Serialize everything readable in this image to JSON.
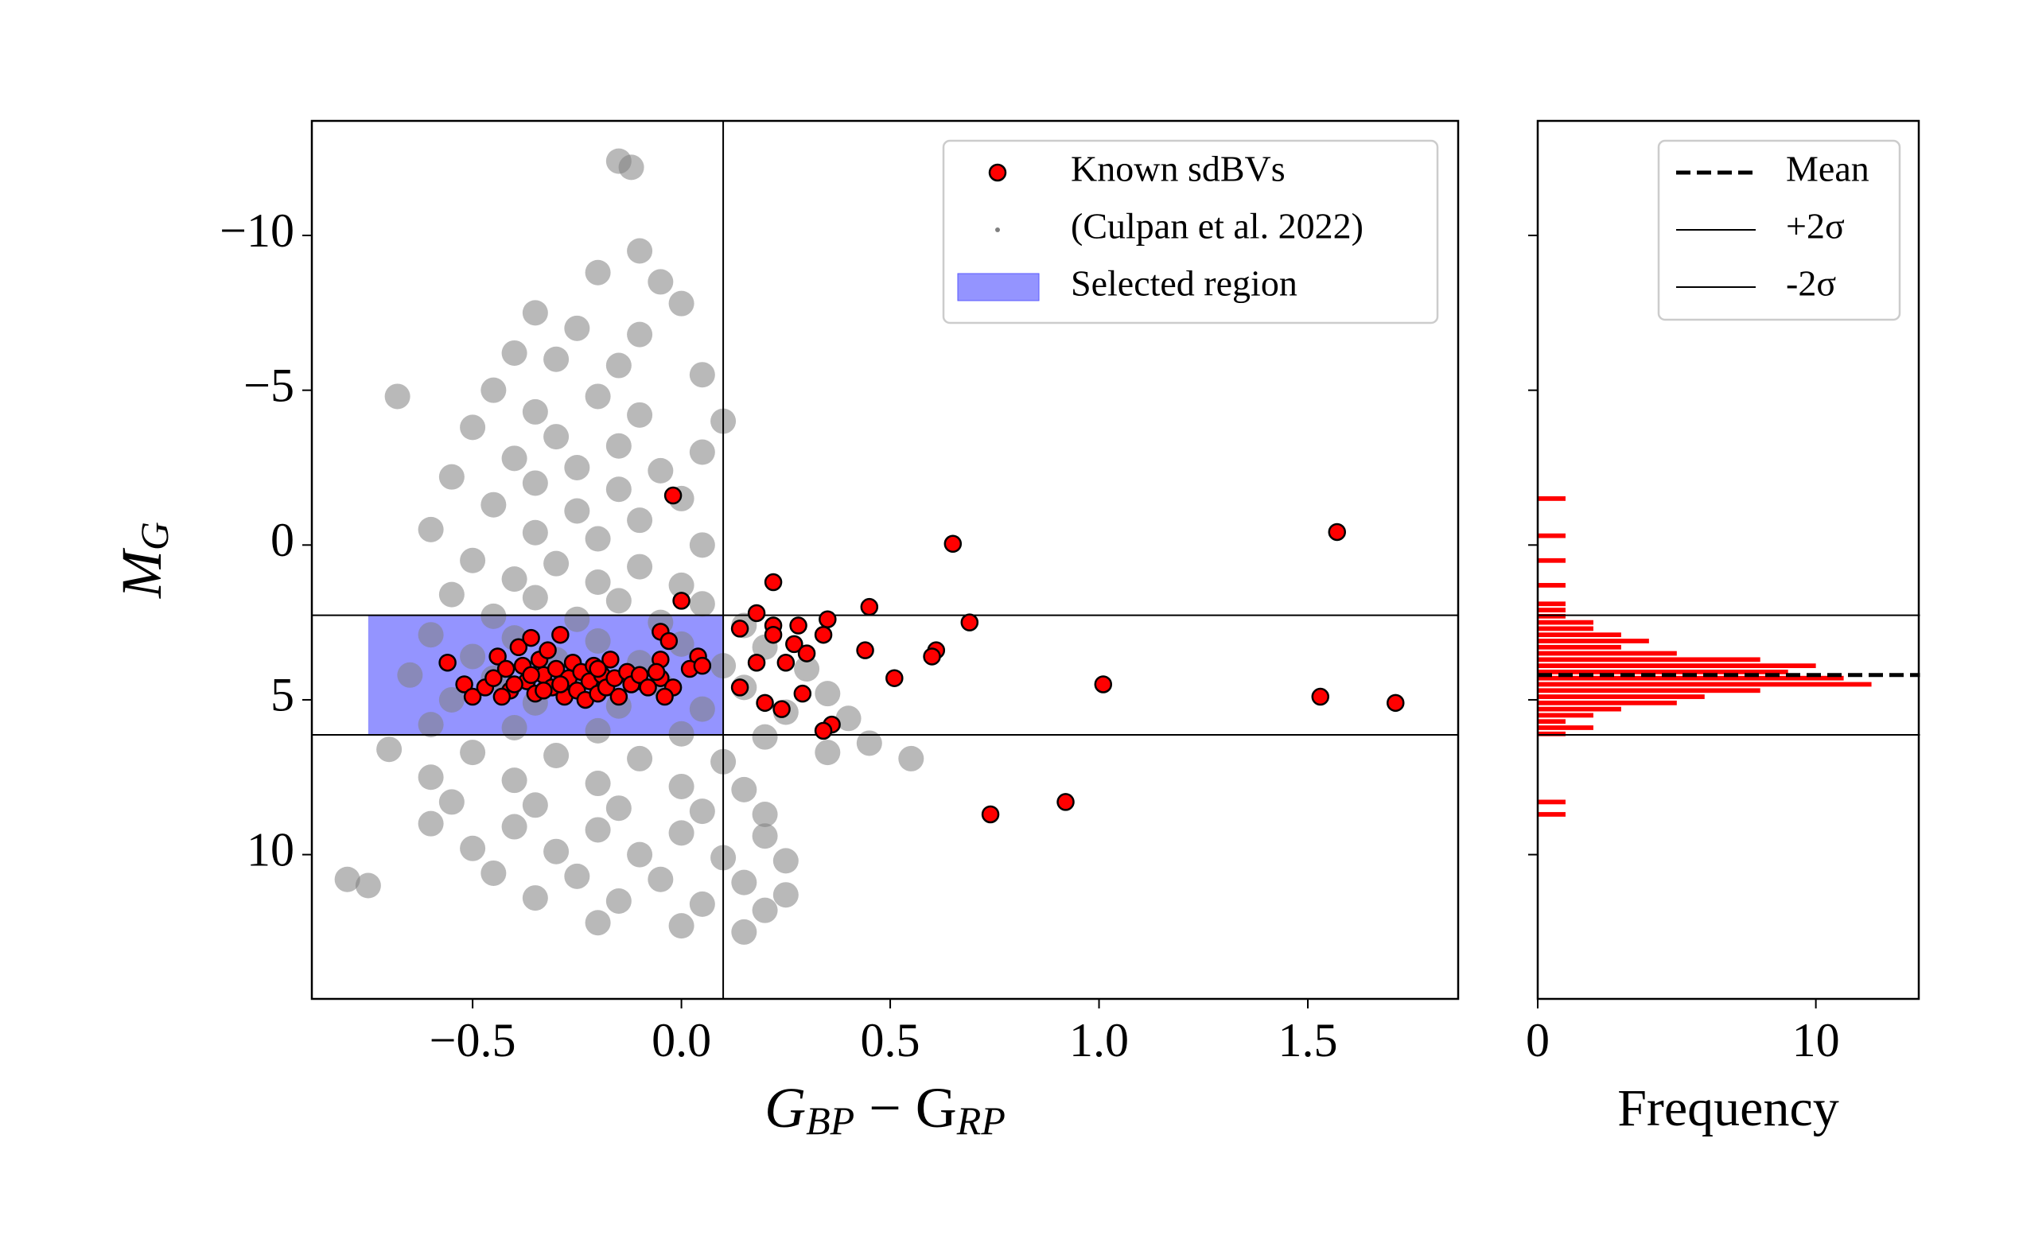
{
  "chart_data": [
    {
      "type": "scatter",
      "xlabel": [
        "G",
        "BP",
        " − G",
        "RP"
      ],
      "ylabel": [
        "M",
        "G"
      ],
      "xlim": [
        -0.885,
        1.86
      ],
      "ylim": [
        14.66,
        -13.7
      ],
      "xticks": [
        {
          "value": -0.5,
          "label": "−0.5"
        },
        {
          "value": 0,
          "label": "0.0"
        },
        0.5,
        {
          "value": 1,
          "label": "1.0"
        },
        1.5
      ],
      "yticks": [
        {
          "value": -10,
          "label": "−10"
        },
        {
          "value": -5,
          "label": "−5"
        },
        0,
        5,
        10
      ],
      "vline": 0.1,
      "hlines": [
        2.27,
        6.13
      ],
      "region": {
        "name": "Selected region",
        "color": "#5a5aff",
        "x": [
          -0.75,
          0.1
        ],
        "y": [
          2.27,
          6.13
        ]
      },
      "legend": "upper right",
      "series": [
        {
          "name": "(Culpan et al. 2022)",
          "color": "#808080",
          "x": [
            -0.15,
            -0.12,
            -0.1,
            -0.2,
            -0.05,
            0.0,
            -0.35,
            -0.25,
            -0.1,
            -0.4,
            -0.3,
            -0.15,
            0.05,
            -0.68,
            -0.45,
            -0.2,
            -0.35,
            -0.1,
            0.1,
            -0.5,
            -0.3,
            -0.15,
            0.05,
            -0.4,
            -0.25,
            -0.05,
            -0.55,
            -0.35,
            -0.15,
            0.0,
            -0.45,
            -0.25,
            -0.1,
            -0.6,
            -0.35,
            -0.2,
            0.05,
            -0.5,
            -0.3,
            -0.1,
            -0.4,
            -0.2,
            0.0,
            -0.55,
            -0.35,
            -0.15,
            0.05,
            -0.45,
            -0.25,
            -0.05,
            0.15,
            -0.6,
            -0.4,
            -0.2,
            0.0,
            0.2,
            -0.5,
            -0.3,
            -0.1,
            0.1,
            0.3,
            -0.65,
            -0.45,
            -0.25,
            -0.05,
            0.15,
            0.35,
            -0.55,
            -0.35,
            -0.15,
            0.05,
            0.25,
            0.4,
            -0.6,
            -0.4,
            -0.2,
            0.0,
            0.2,
            0.45,
            0.55,
            0.35,
            -0.7,
            -0.5,
            -0.3,
            -0.1,
            0.1,
            -0.6,
            -0.4,
            -0.2,
            0.0,
            0.15,
            -0.55,
            -0.35,
            -0.15,
            0.05,
            0.2,
            -0.6,
            -0.4,
            -0.2,
            0.0,
            0.2,
            -0.5,
            -0.3,
            -0.1,
            0.1,
            0.25,
            -0.45,
            -0.25,
            -0.05,
            0.15,
            -0.35,
            -0.15,
            0.05,
            0.2,
            -0.2,
            0.0,
            0.15,
            -0.75,
            -0.8,
            0.25
          ],
          "values": [
            -12.4,
            -12.2,
            -9.5,
            -8.8,
            -8.5,
            -7.8,
            -7.5,
            -7,
            -6.8,
            -6.2,
            -6,
            -5.8,
            -5.5,
            -4.8,
            -5,
            -4.8,
            -4.3,
            -4.2,
            -4,
            -3.8,
            -3.5,
            -3.2,
            -3,
            -2.8,
            -2.5,
            -2.4,
            -2.2,
            -2,
            -1.8,
            -1.5,
            -1.3,
            -1.1,
            -0.8,
            -0.5,
            -0.4,
            -0.2,
            0,
            0.5,
            0.6,
            0.7,
            1.1,
            1.2,
            1.3,
            1.6,
            1.7,
            1.8,
            1.9,
            2.3,
            2.4,
            2.5,
            2.6,
            2.9,
            3.0,
            3.1,
            3.2,
            3.3,
            3.6,
            3.7,
            3.8,
            3.9,
            4.0,
            4.2,
            4.3,
            4.4,
            4.5,
            4.6,
            4.8,
            5.0,
            5.1,
            5.2,
            5.3,
            5.4,
            5.6,
            5.8,
            5.9,
            6.0,
            6.1,
            6.2,
            6.4,
            6.9,
            6.7,
            6.6,
            6.7,
            6.8,
            6.9,
            7.0,
            7.5,
            7.6,
            7.7,
            7.8,
            7.9,
            8.3,
            8.4,
            8.5,
            8.6,
            8.7,
            9.0,
            9.1,
            9.2,
            9.3,
            9.4,
            9.8,
            9.9,
            10.0,
            10.1,
            10.2,
            10.6,
            10.7,
            10.8,
            10.9,
            11.4,
            11.5,
            11.6,
            11.8,
            12.2,
            12.3,
            12.5,
            11,
            10.8,
            11.3
          ]
        },
        {
          "name": "Known sdBVs",
          "color": "#ff0000",
          "edgecolor": "#000000",
          "x": [
            -0.02,
            0.0,
            0.65,
            1.57,
            0.22,
            0.45,
            0.18,
            0.35,
            0.22,
            0.28,
            0.69,
            0.14,
            0.34,
            0.22,
            0.27,
            0.44,
            0.61,
            0.6,
            0.3,
            0.25,
            0.18,
            0.51,
            1.01,
            0.14,
            0.29,
            1.53,
            1.71,
            0.2,
            0.24,
            0.36,
            0.34,
            0.74,
            0.92,
            0.04,
            0.02,
            0.05,
            -0.05,
            -0.03,
            -0.05,
            -0.1,
            -0.05,
            -0.02,
            -0.56,
            -0.52,
            -0.5,
            -0.47,
            -0.45,
            -0.44,
            -0.42,
            -0.41,
            -0.39,
            -0.38,
            -0.37,
            -0.36,
            -0.35,
            -0.34,
            -0.33,
            -0.32,
            -0.31,
            -0.3,
            -0.29,
            -0.28,
            -0.27,
            -0.26,
            -0.25,
            -0.24,
            -0.23,
            -0.22,
            -0.21,
            -0.2,
            -0.19,
            -0.18,
            -0.17,
            -0.16,
            -0.15,
            -0.13,
            -0.12,
            -0.1,
            -0.08,
            -0.06,
            -0.04,
            -0.2,
            -0.4,
            -0.33,
            -0.29,
            -0.43,
            -0.36
          ],
          "values": [
            -1.6,
            1.8,
            -0.04,
            -0.42,
            1.2,
            2.0,
            2.2,
            2.4,
            2.6,
            2.6,
            2.5,
            2.7,
            2.9,
            2.9,
            3.2,
            3.4,
            3.4,
            3.6,
            3.5,
            3.8,
            3.8,
            4.3,
            4.5,
            4.6,
            4.8,
            4.9,
            5.1,
            5.1,
            5.3,
            5.8,
            6.0,
            8.7,
            8.3,
            3.6,
            4.0,
            3.9,
            2.8,
            3.1,
            3.7,
            4.4,
            4.3,
            4.6,
            3.8,
            4.5,
            4.9,
            4.6,
            4.3,
            3.6,
            4.0,
            4.7,
            3.3,
            3.9,
            4.4,
            3.0,
            4.8,
            3.7,
            4.2,
            3.4,
            4.6,
            4.0,
            2.9,
            4.9,
            4.3,
            3.8,
            4.7,
            4.1,
            5.0,
            4.4,
            3.9,
            4.8,
            4.2,
            4.6,
            3.7,
            4.3,
            4.9,
            4.1,
            4.5,
            4.2,
            4.6,
            4.1,
            4.9,
            4.0,
            4.5,
            4.7,
            4.5,
            4.9,
            4.2
          ]
        }
      ]
    },
    {
      "type": "histogram",
      "orientation": "horizontal",
      "xlabel": "Frequency",
      "xlim": [
        0,
        13.7
      ],
      "xticks": [
        0,
        10
      ],
      "ylim": [
        14.66,
        -13.7
      ],
      "yticks": [
        -10,
        -5,
        0,
        5,
        10
      ],
      "color": "#ff0000",
      "bins": [
        -1.6,
        -1.4,
        -1.2,
        -1.0,
        -0.8,
        -0.6,
        -0.4,
        -0.2,
        0,
        0.2,
        0.4,
        0.6,
        0.8,
        1.0,
        1.2,
        1.4,
        1.6,
        1.8,
        2.0,
        2.2,
        2.4,
        2.6,
        2.8,
        3.0,
        3.2,
        3.4,
        3.6,
        3.8,
        4.0,
        4.2,
        4.4,
        4.6,
        4.8,
        5.0,
        5.2,
        5.4,
        5.6,
        5.8,
        6.0,
        6.2,
        6.4,
        6.6,
        6.8,
        7.0,
        7.2,
        7.4,
        7.6,
        7.8,
        8.0,
        8.2,
        8.4,
        8.6,
        8.8,
        9.0,
        9.2,
        9.4
      ],
      "values": [
        1,
        0,
        0,
        0,
        0,
        0,
        1,
        0,
        0,
        0,
        1,
        0,
        0,
        0,
        1,
        0,
        0,
        1,
        1,
        1,
        2,
        2,
        3,
        4,
        3,
        5,
        8,
        10,
        9,
        11,
        12,
        8,
        6,
        5,
        3,
        2,
        1,
        2,
        1,
        0,
        0,
        0,
        0,
        0,
        0,
        0,
        0,
        0,
        0,
        1,
        0,
        1,
        0,
        0,
        0
      ],
      "lines": [
        {
          "name": "Mean",
          "value": 4.2,
          "style": "dashed"
        },
        {
          "name": "+2σ",
          "value": 2.27,
          "style": "solid"
        },
        {
          "name": "-2σ",
          "value": 6.13,
          "style": "solid"
        }
      ],
      "legend": "upper right"
    }
  ]
}
